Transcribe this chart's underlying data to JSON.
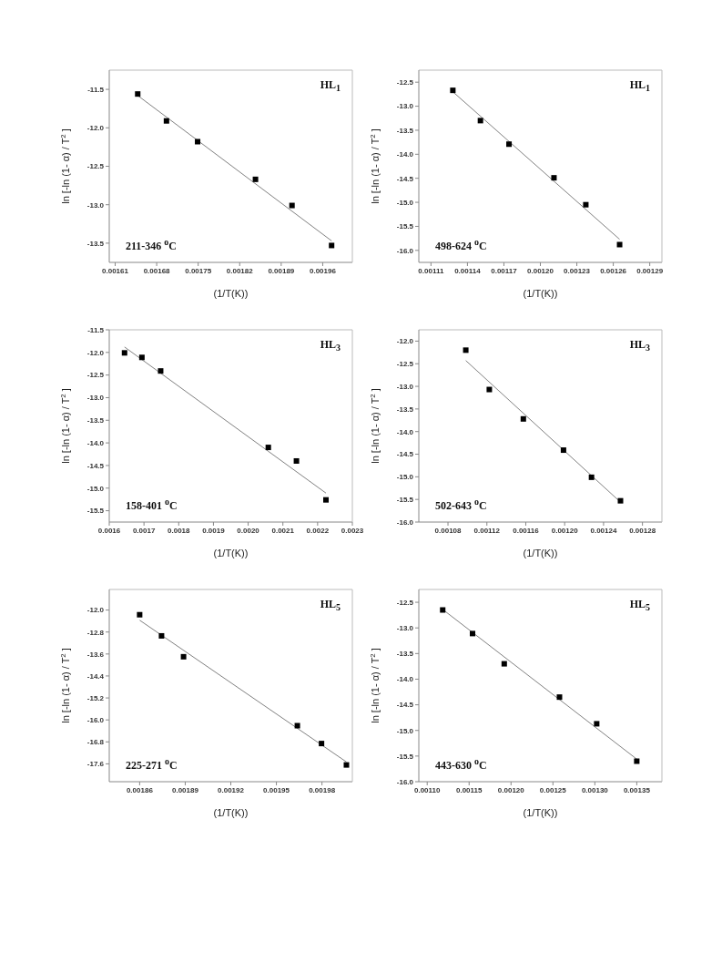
{
  "chart_data": [
    {
      "type": "scatter",
      "xlabel": "(1/T(K))",
      "ylabel": "ln [-ln (1- α) / T$^{2}$ ]",
      "annotations": [
        "HL$_{1}$",
        "211-346 $^{o}$C"
      ],
      "xlim": [
        0.0016,
        0.00201
      ],
      "xticks": [
        0.00161,
        0.00168,
        0.00175,
        0.00182,
        0.00189,
        0.00196
      ],
      "ylim": [
        -13.75,
        -11.25
      ],
      "yticks": [
        -11.5,
        {
          "value": -12,
          "label": "-12.0"
        },
        -12.5,
        {
          "value": -13,
          "label": "-13.0"
        },
        -13.5
      ],
      "series": [
        {
          "marker": "square",
          "color": "#000000",
          "x": [
            0.001648,
            0.0016965,
            0.001749,
            0.0018466,
            0.0019082,
            0.001975
          ],
          "values": [
            -11.56,
            -11.91,
            -12.18,
            -12.67,
            -13.01,
            -13.53
          ]
        },
        {
          "type": "line",
          "marker": "none",
          "color": "#808080",
          "x": [
            0.001648,
            0.001975
          ],
          "values": [
            -11.58,
            -13.47
          ]
        }
      ]
    },
    {
      "type": "scatter",
      "xlabel": "(1/T(K))",
      "ylabel": "ln [-ln (1- α) / T$^{2}$ ]",
      "annotations": [
        "HL$_{1}$",
        "498-624 $^{o}$C"
      ],
      "xlim": [
        0.0011,
        0.0013
      ],
      "xticks": [
        0.00111,
        0.00114,
        0.00117,
        {
          "value": 0.0012,
          "label": "0.00120"
        },
        0.00123,
        0.00126,
        0.00129
      ],
      "ylim": [
        -16.25,
        -12.25
      ],
      "yticks": [
        -12.5,
        {
          "value": -13,
          "label": "-13.0"
        },
        -13.5,
        {
          "value": -14,
          "label": "-14.0"
        },
        -14.5,
        {
          "value": -15,
          "label": "-15.0"
        },
        -15.5,
        {
          "value": -16,
          "label": "-16.0"
        }
      ],
      "series": [
        {
          "marker": "square",
          "color": "#000000",
          "x": [
            0.001128,
            0.0011507,
            0.0011742,
            0.0012112,
            0.0012374,
            0.0012652
          ],
          "values": [
            -12.67,
            -13.3,
            -13.79,
            -14.49,
            -15.05,
            -15.88
          ]
        },
        {
          "type": "line",
          "marker": "none",
          "color": "#808080",
          "x": [
            0.001128,
            0.0012652
          ],
          "values": [
            -12.7,
            -15.77
          ]
        }
      ]
    },
    {
      "type": "scatter",
      "xlabel": "(1/T(K))",
      "ylabel": "ln [-ln (1- α) / T$^{2}$ ]",
      "annotations": [
        "HL$_{3}$",
        "158-401 $^{o}$C"
      ],
      "xlim": [
        0.0016,
        0.0023
      ],
      "xticks": [
        0.0016,
        0.0017,
        0.0018,
        0.0019,
        {
          "value": 0.002,
          "label": "0.0020"
        },
        0.0021,
        0.0022,
        0.0023
      ],
      "ylim": [
        -15.75,
        -11.5
      ],
      "yticks": [
        -11.5,
        {
          "value": -12,
          "label": "-12.0"
        },
        -12.5,
        {
          "value": -13,
          "label": "-13.0"
        },
        -13.5,
        {
          "value": -14,
          "label": "-14.0"
        },
        -14.5,
        {
          "value": -15,
          "label": "-15.0"
        },
        -15.5
      ],
      "series": [
        {
          "marker": "square",
          "color": "#000000",
          "x": [
            0.001644,
            0.001694,
            0.001748,
            0.002058,
            0.002139,
            0.002224
          ],
          "values": [
            -12.01,
            -12.11,
            -12.41,
            -14.1,
            -14.4,
            -15.26
          ]
        },
        {
          "type": "line",
          "marker": "none",
          "color": "#808080",
          "x": [
            0.001644,
            0.002224
          ],
          "values": [
            -11.88,
            -15.11
          ]
        }
      ]
    },
    {
      "type": "scatter",
      "xlabel": "(1/T(K))",
      "ylabel": "ln [-ln (1- α) / T$^{2}$ ]",
      "annotations": [
        "HL$_{3}$",
        "502-643 $^{o}$C"
      ],
      "xlim": [
        0.00105,
        0.0013
      ],
      "xticks": [
        0.00108,
        0.00112,
        0.00116,
        {
          "value": 0.0012,
          "label": "0.00120"
        },
        0.00124,
        0.00128
      ],
      "ylim": [
        -16,
        -11.75
      ],
      "yticks": [
        {
          "value": -12,
          "label": "-12.0"
        },
        -12.5,
        {
          "value": -13,
          "label": "-13.0"
        },
        -13.5,
        {
          "value": -14,
          "label": "-14.0"
        },
        -14.5,
        {
          "value": -15,
          "label": "-15.0"
        },
        -15.5,
        {
          "value": -16,
          "label": "-16.0"
        }
      ],
      "series": [
        {
          "marker": "square",
          "color": "#000000",
          "x": [
            0.0010983,
            0.0011225,
            0.0011575,
            0.0011988,
            0.0012276,
            0.0012574
          ],
          "values": [
            -12.2,
            -13.07,
            -13.72,
            -14.41,
            -15.01,
            -15.53
          ]
        },
        {
          "type": "line",
          "marker": "none",
          "color": "#808080",
          "x": [
            0.0010983,
            0.0012574
          ],
          "values": [
            -12.43,
            -15.56
          ]
        }
      ]
    },
    {
      "type": "scatter",
      "xlabel": "(1/T(K))",
      "ylabel": "ln [-ln (1- α) / T$^{2}$ ]",
      "annotations": [
        "HL$_{5}$",
        "225-271 $^{o}$C"
      ],
      "xlim": [
        0.00184,
        0.002
      ],
      "xticks": [
        0.00186,
        0.00189,
        0.00192,
        0.00195,
        0.00198
      ],
      "ylim": [
        -18.25,
        -11.25
      ],
      "yticks": [
        {
          "value": -12,
          "label": "-12.0"
        },
        -12.8,
        -13.6,
        -14.4,
        -15.2,
        {
          "value": -16,
          "label": "-16.0"
        },
        -16.8,
        -17.6
      ],
      "series": [
        {
          "marker": "square",
          "color": "#000000",
          "x": [
            0.00186,
            0.0018744,
            0.0018889,
            0.0019638,
            0.0019797,
            0.0019961
          ],
          "values": [
            -12.17,
            -12.94,
            -13.7,
            -16.21,
            -16.86,
            -17.64
          ]
        },
        {
          "type": "line",
          "marker": "none",
          "color": "#808080",
          "x": [
            0.00186,
            0.0019961
          ],
          "values": [
            -12.37,
            -17.53
          ]
        }
      ]
    },
    {
      "type": "scatter",
      "xlabel": "(1/T(K))",
      "ylabel": "ln [-ln (1- α) / T$^{2}$ ]",
      "annotations": [
        "HL$_{5}$",
        "443-630 $^{o}$C"
      ],
      "xlim": [
        0.00109,
        0.00138
      ],
      "xticks": [
        {
          "value": 0.0011,
          "label": "0.00110"
        },
        0.00115,
        {
          "value": 0.0012,
          "label": "0.00120"
        },
        0.00125,
        {
          "value": 0.0013,
          "label": "0.00130"
        },
        0.00135
      ],
      "ylim": [
        -16,
        -12.25
      ],
      "yticks": [
        -12.5,
        {
          "value": -13,
          "label": "-13.0"
        },
        -13.5,
        {
          "value": -14,
          "label": "-14.0"
        },
        -14.5,
        {
          "value": -15,
          "label": "-15.0"
        },
        -15.5,
        {
          "value": -16,
          "label": "-16.0"
        }
      ],
      "series": [
        {
          "marker": "square",
          "color": "#000000",
          "x": [
            0.0011185,
            0.0011541,
            0.0011919,
            0.0012578,
            0.0013022,
            0.00135
          ],
          "values": [
            -12.65,
            -13.11,
            -13.7,
            -14.35,
            -14.87,
            -15.6
          ]
        },
        {
          "type": "line",
          "marker": "none",
          "color": "#808080",
          "x": [
            0.0011185,
            0.00135
          ],
          "values": [
            -12.64,
            -15.56
          ]
        }
      ]
    }
  ]
}
